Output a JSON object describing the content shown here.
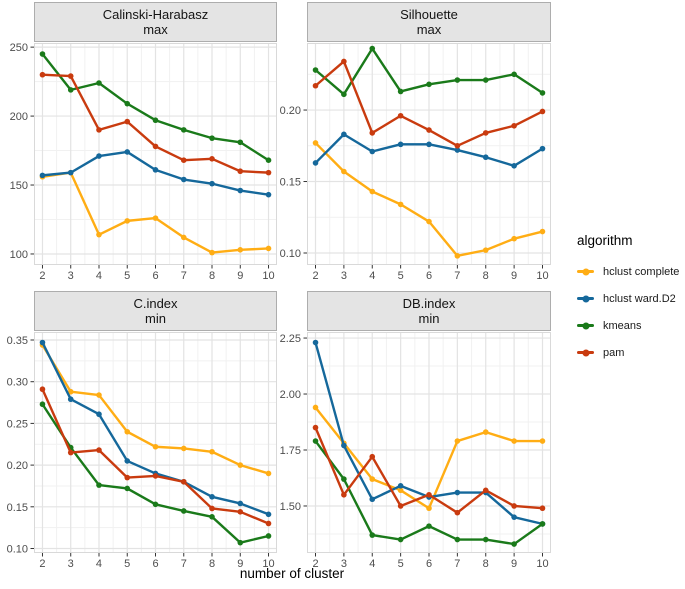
{
  "xlabel": "number of cluster",
  "legend": {
    "title": "algorithm",
    "items": [
      {
        "label": "hclust complete",
        "color": "#FFAD14"
      },
      {
        "label": "hclust ward.D2",
        "color": "#15689B"
      },
      {
        "label": "kmeans",
        "color": "#1A7A1A"
      },
      {
        "label": "pam",
        "color": "#C93B0F"
      }
    ]
  },
  "grid": {
    "major_color": "#E3E3E3",
    "minor_color": "#F1F1F1",
    "panel_border": "#D9D9D9",
    "tick_color": "#333333",
    "tick_label_color": "#4D4D4D"
  },
  "chart_data": [
    {
      "type": "line",
      "title": "Calinski-Harabasz",
      "subtitle": "max",
      "x": [
        2,
        3,
        4,
        5,
        6,
        7,
        8,
        9,
        10
      ],
      "xlim": [
        1.7,
        10.3
      ],
      "ylim": [
        92,
        253
      ],
      "ytick_values": [
        100,
        150,
        200,
        250
      ],
      "ytick_labels": [
        "100",
        "150",
        "200",
        "250"
      ],
      "series": [
        {
          "name": "hclust complete",
          "values": [
            156,
            159,
            114,
            124,
            126,
            112,
            101,
            103,
            104
          ]
        },
        {
          "name": "hclust ward.D2",
          "values": [
            157,
            159,
            171,
            174,
            161,
            154,
            151,
            146,
            143
          ]
        },
        {
          "name": "kmeans",
          "values": [
            245,
            219,
            224,
            209,
            197,
            190,
            184,
            181,
            168
          ]
        },
        {
          "name": "pam",
          "values": [
            230,
            229,
            190,
            196,
            178,
            168,
            169,
            160,
            159
          ]
        }
      ]
    },
    {
      "type": "line",
      "title": "Silhouette",
      "subtitle": "max",
      "x": [
        2,
        3,
        4,
        5,
        6,
        7,
        8,
        9,
        10
      ],
      "xlim": [
        1.7,
        10.3
      ],
      "ylim": [
        0.0916,
        0.2469
      ],
      "ytick_values": [
        0.1,
        0.15,
        0.2
      ],
      "ytick_labels": [
        "0.10",
        "0.15",
        "0.20"
      ],
      "series": [
        {
          "name": "hclust complete",
          "values": [
            0.177,
            0.157,
            0.143,
            0.134,
            0.122,
            0.098,
            0.102,
            0.11,
            0.115
          ]
        },
        {
          "name": "hclust ward.D2",
          "values": [
            0.163,
            0.183,
            0.171,
            0.176,
            0.176,
            0.172,
            0.167,
            0.161,
            0.173
          ]
        },
        {
          "name": "kmeans",
          "values": [
            0.228,
            0.211,
            0.243,
            0.213,
            0.218,
            0.221,
            0.221,
            0.225,
            0.212
          ]
        },
        {
          "name": "pam",
          "values": [
            0.217,
            0.234,
            0.184,
            0.196,
            0.186,
            0.175,
            0.184,
            0.189,
            0.199
          ]
        }
      ]
    },
    {
      "type": "line",
      "title": "C.index",
      "subtitle": "min",
      "x": [
        2,
        3,
        4,
        5,
        6,
        7,
        8,
        9,
        10
      ],
      "xlim": [
        1.7,
        10.3
      ],
      "ylim": [
        0.0946,
        0.3596
      ],
      "ytick_values": [
        0.1,
        0.15,
        0.2,
        0.25,
        0.3,
        0.35
      ],
      "ytick_labels": [
        "0.10",
        "0.15",
        "0.20",
        "0.25",
        "0.30",
        "0.35"
      ],
      "series": [
        {
          "name": "hclust complete",
          "values": [
            0.344,
            0.288,
            0.284,
            0.24,
            0.222,
            0.22,
            0.216,
            0.2,
            0.19
          ]
        },
        {
          "name": "hclust ward.D2",
          "values": [
            0.347,
            0.279,
            0.261,
            0.205,
            0.19,
            0.18,
            0.162,
            0.154,
            0.141
          ]
        },
        {
          "name": "kmeans",
          "values": [
            0.273,
            0.221,
            0.176,
            0.172,
            0.153,
            0.145,
            0.138,
            0.107,
            0.115
          ]
        },
        {
          "name": "pam",
          "values": [
            0.291,
            0.215,
            0.218,
            0.185,
            0.187,
            0.18,
            0.148,
            0.144,
            0.13
          ]
        }
      ]
    },
    {
      "type": "line",
      "title": "DB.index",
      "subtitle": "min",
      "x": [
        2,
        3,
        4,
        5,
        6,
        7,
        8,
        9,
        10
      ],
      "xlim": [
        1.7,
        10.3
      ],
      "ylim": [
        1.29,
        2.277
      ],
      "ytick_values": [
        1.5,
        1.75,
        2.0,
        2.25
      ],
      "ytick_labels": [
        "1.50",
        "1.75",
        "2.00",
        "2.25"
      ],
      "series": [
        {
          "name": "hclust complete",
          "values": [
            1.94,
            1.78,
            1.62,
            1.57,
            1.49,
            1.79,
            1.83,
            1.79,
            1.79
          ]
        },
        {
          "name": "hclust ward.D2",
          "values": [
            2.23,
            1.77,
            1.53,
            1.59,
            1.54,
            1.56,
            1.56,
            1.45,
            1.42
          ]
        },
        {
          "name": "kmeans",
          "values": [
            1.79,
            1.62,
            1.37,
            1.35,
            1.41,
            1.35,
            1.35,
            1.33,
            1.42
          ]
        },
        {
          "name": "pam",
          "values": [
            1.85,
            1.55,
            1.72,
            1.5,
            1.55,
            1.47,
            1.57,
            1.5,
            1.49
          ]
        }
      ]
    }
  ]
}
